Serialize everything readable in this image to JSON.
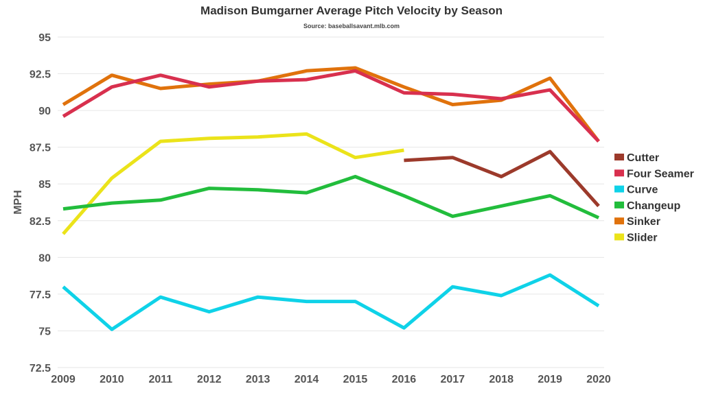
{
  "chart_data": {
    "type": "line",
    "title": "Madison Bumgarner Average Pitch Velocity by Season",
    "subtitle": "Source: baseballsavant.mlb.com",
    "xlabel": "",
    "ylabel": "MPH",
    "x": [
      "2009",
      "2010",
      "2011",
      "2012",
      "2013",
      "2014",
      "2015",
      "2016",
      "2017",
      "2018",
      "2019",
      "2020"
    ],
    "ylim": [
      72.5,
      95
    ],
    "yticks": [
      "72.5",
      "75",
      "77.5",
      "80",
      "82.5",
      "85",
      "87.5",
      "90",
      "92.5",
      "95"
    ],
    "grid": true,
    "legend_position": "right",
    "series": [
      {
        "name": "Cutter",
        "color": "#9c3a2b",
        "values": [
          null,
          null,
          null,
          null,
          null,
          null,
          null,
          86.6,
          86.8,
          85.5,
          87.2,
          83.5
        ]
      },
      {
        "name": "Four Seamer",
        "color": "#d8304e",
        "values": [
          89.6,
          91.6,
          92.4,
          91.6,
          92.0,
          92.1,
          92.7,
          91.2,
          91.1,
          90.8,
          91.4,
          87.9
        ]
      },
      {
        "name": "Curve",
        "color": "#0fd2e8",
        "values": [
          78.0,
          75.1,
          77.3,
          76.3,
          77.3,
          77.0,
          77.0,
          75.2,
          78.0,
          77.4,
          78.8,
          76.7
        ]
      },
      {
        "name": "Changeup",
        "color": "#22bd3c",
        "values": [
          83.3,
          83.7,
          83.9,
          84.7,
          84.6,
          84.4,
          85.5,
          84.2,
          82.8,
          83.5,
          84.2,
          82.7
        ]
      },
      {
        "name": "Sinker",
        "color": "#e0720c",
        "values": [
          90.4,
          92.4,
          91.5,
          91.8,
          92.0,
          92.7,
          92.9,
          91.6,
          90.4,
          90.7,
          92.2,
          87.9
        ]
      },
      {
        "name": "Slider",
        "color": "#ebe31a",
        "values": [
          81.6,
          85.4,
          87.9,
          88.1,
          88.2,
          88.4,
          86.8,
          87.3,
          null,
          null,
          null,
          null
        ]
      }
    ]
  }
}
